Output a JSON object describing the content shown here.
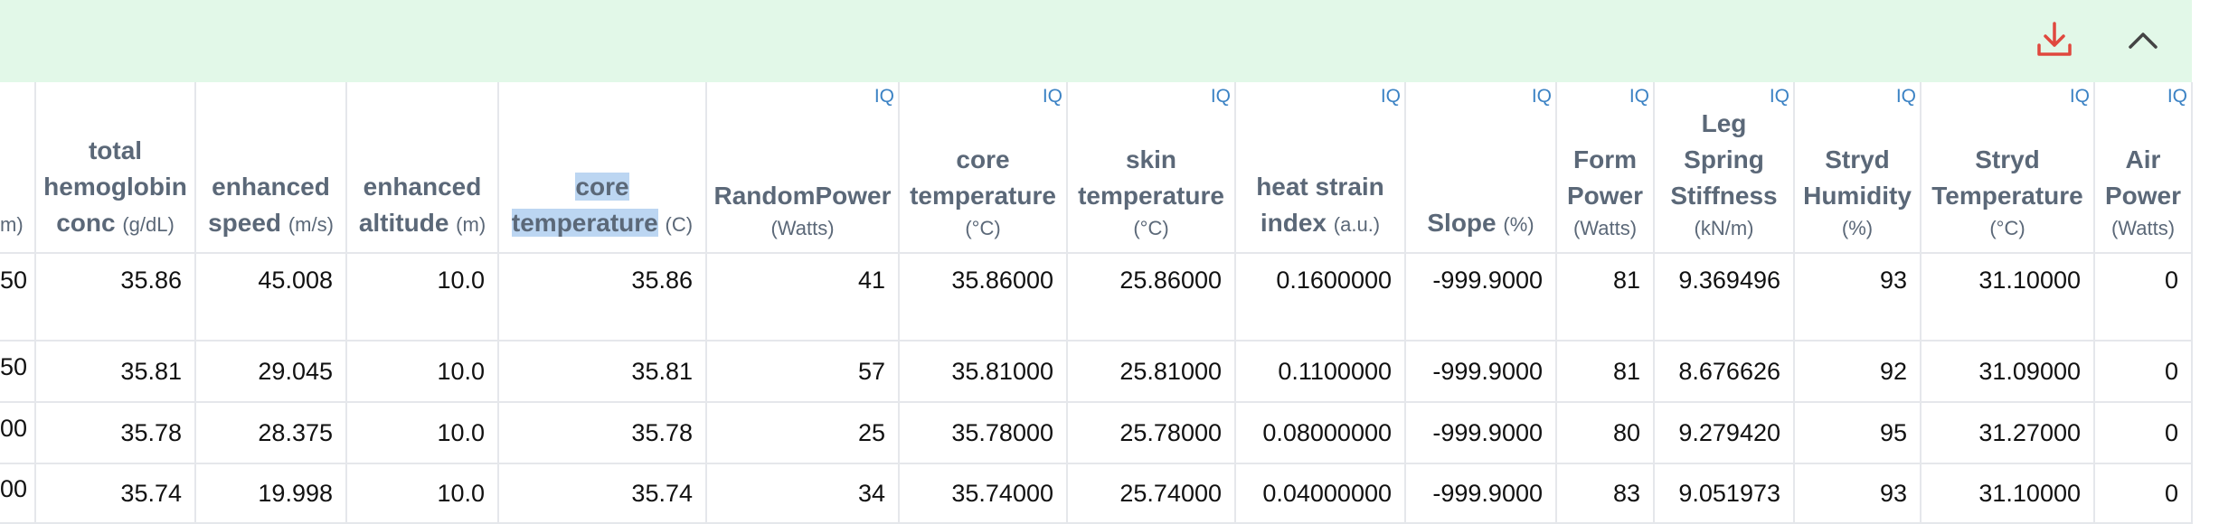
{
  "table": {
    "columns": [
      {
        "name": "",
        "unit": "m)"
      },
      {
        "name": "total hemoglobin conc",
        "unit": "(g/dL)"
      },
      {
        "name": "enhanced speed",
        "unit": "(m/s)"
      },
      {
        "name": "enhanced altitude",
        "unit": "(m)"
      },
      {
        "name": "core temperature",
        "unit": "(C)"
      },
      {
        "name": "RandomPower",
        "unit": "(Watts)",
        "badge": "IQ"
      },
      {
        "name": "core temperature",
        "unit": "(°C)",
        "badge": "IQ"
      },
      {
        "name": "skin temperature",
        "unit": "(°C)",
        "badge": "IQ"
      },
      {
        "name": "heat strain index",
        "unit": "(a.u.)",
        "badge": "IQ"
      },
      {
        "name": "Slope",
        "unit": "(%)",
        "badge": "IQ"
      },
      {
        "name": "Form Power",
        "unit": "(Watts)",
        "badge": "IQ"
      },
      {
        "name": "Leg Spring Stiffness",
        "unit": "(kN/m)",
        "badge": "IQ"
      },
      {
        "name": "Stryd Humidity",
        "unit": "(%)",
        "badge": "IQ"
      },
      {
        "name": "Stryd Temperature",
        "unit": "(°C)",
        "badge": "IQ"
      },
      {
        "name": "Air Power",
        "unit": "(Watts)",
        "badge": "IQ"
      }
    ],
    "rows": [
      [
        "50",
        "35.86",
        "45.008",
        "10.0",
        "35.86",
        "41",
        "35.86000",
        "25.86000",
        "0.1600000",
        "-999.9000",
        "81",
        "9.369496",
        "93",
        "31.10000",
        "0"
      ],
      [
        "50",
        "35.81",
        "29.045",
        "10.0",
        "35.81",
        "57",
        "35.81000",
        "25.81000",
        "0.1100000",
        "-999.9000",
        "81",
        "8.676626",
        "92",
        "31.09000",
        "0"
      ],
      [
        "00",
        "35.78",
        "28.375",
        "10.0",
        "35.78",
        "25",
        "35.78000",
        "25.78000",
        "0.08000000",
        "-999.9000",
        "80",
        "9.279420",
        "95",
        "31.27000",
        "0"
      ],
      [
        "00",
        "35.74",
        "19.998",
        "10.0",
        "35.74",
        "34",
        "35.74000",
        "25.74000",
        "0.04000000",
        "-999.9000",
        "83",
        "9.051973",
        "93",
        "31.10000",
        "0"
      ]
    ]
  }
}
